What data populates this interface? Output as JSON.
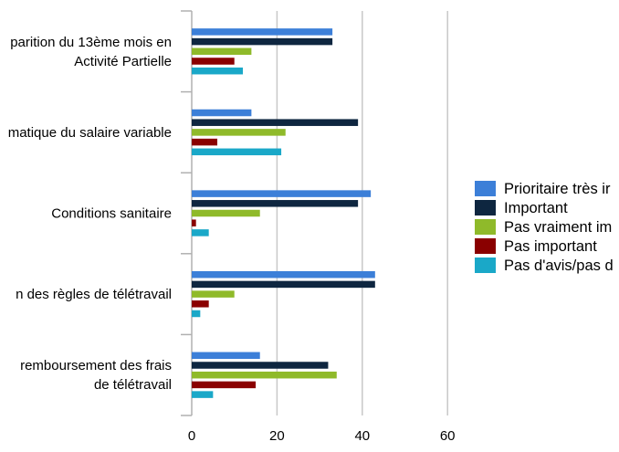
{
  "chart_data": {
    "type": "bar",
    "orientation": "horizontal",
    "categories": [
      [
        "parition du 13ème mois en",
        "Activité Partielle"
      ],
      [
        "matique du salaire variable"
      ],
      [
        "Conditions sanitaire"
      ],
      [
        "n des règles de télétravail"
      ],
      [
        "remboursement des frais",
        "de télétravail"
      ]
    ],
    "series": [
      {
        "name": "Prioritaire très ir",
        "color": "#3c7fd8",
        "values": [
          33,
          14,
          42,
          43,
          16
        ]
      },
      {
        "name": "Important",
        "color": "#0e2640",
        "values": [
          33,
          39,
          39,
          43,
          32
        ]
      },
      {
        "name": "Pas vraiment im",
        "color": "#8fba2a",
        "values": [
          14,
          22,
          16,
          10,
          34
        ]
      },
      {
        "name": "Pas important",
        "color": "#8a0000",
        "values": [
          10,
          6,
          1,
          4,
          15
        ]
      },
      {
        "name": "Pas d'avis/pas d",
        "color": "#1aa8c8",
        "values": [
          12,
          21,
          4,
          2,
          5
        ]
      }
    ],
    "xlim": [
      0,
      60
    ],
    "xticks": [
      "0",
      "20",
      "40",
      "60"
    ],
    "grid": true,
    "legend_position": "right"
  }
}
